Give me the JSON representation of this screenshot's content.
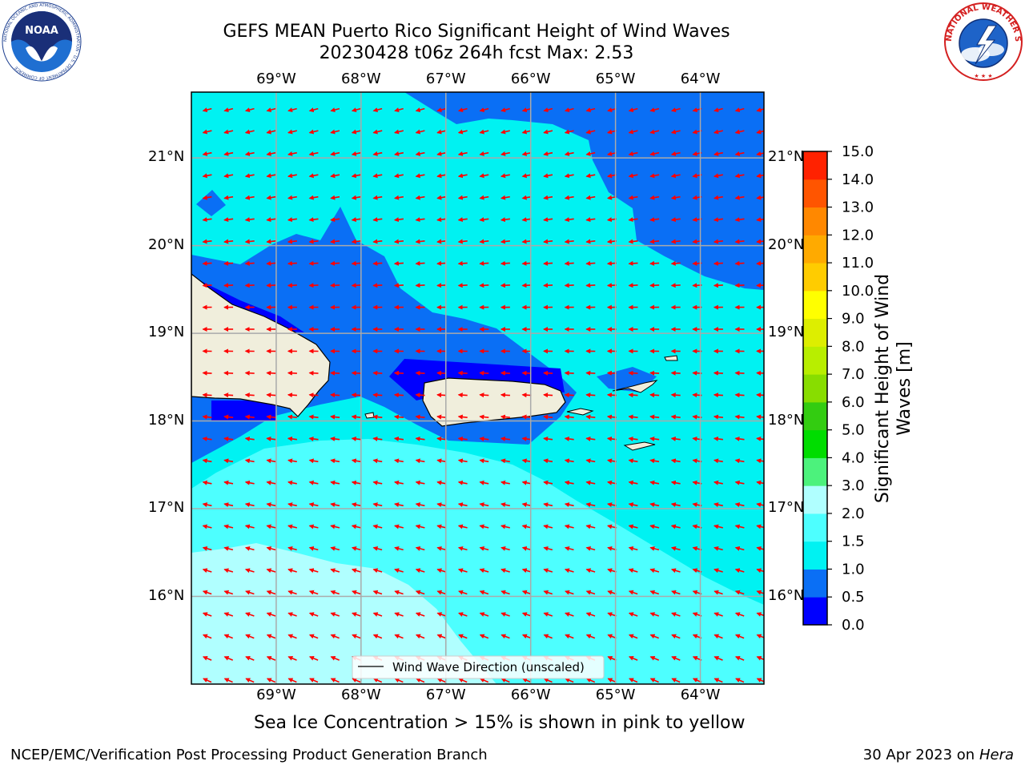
{
  "title_line1": "GEFS MEAN Puerto Rico Significant Height of Wind Waves",
  "title_line2": "20230428 t06z 264h fcst   Max: 2.53",
  "lon_labels": [
    "69°W",
    "68°W",
    "67°W",
    "66°W",
    "65°W",
    "64°W"
  ],
  "lat_labels": [
    "21°N",
    "20°N",
    "19°N",
    "18°N",
    "17°N",
    "16°N"
  ],
  "legend_label": "Wind Wave Direction (unscaled)",
  "ice_note": "Sea Ice Concentration > 15% is shown in pink to yellow",
  "footer_left": "NCEP/EMC/Verification Post Processing Product Generation Branch",
  "footer_right_date": "30 Apr 2023 on ",
  "footer_right_host": "Hera",
  "colorbar": {
    "title_line1": "Significant Height of Wind",
    "title_line2": "Waves [m]",
    "levels": [
      0.0,
      0.5,
      1.0,
      1.5,
      2.0,
      3.0,
      4.0,
      5.0,
      6.0,
      7.0,
      8.0,
      9.0,
      10.0,
      11.0,
      12.0,
      13.0,
      14.0,
      15.0
    ],
    "tick_labels": [
      "0.0",
      "0.5",
      "1.0",
      "1.5",
      "2.0",
      "3.0",
      "4.0",
      "5.0",
      "6.0",
      "7.0",
      "8.0",
      "9.0",
      "10.0",
      "11.0",
      "12.0",
      "13.0",
      "14.0",
      "15.0"
    ],
    "colors": [
      "#0000ff",
      "#0a6ff5",
      "#00f2f2",
      "#4dffff",
      "#b0ffff",
      "#4cf27c",
      "#00dd00",
      "#33cc11",
      "#88dd00",
      "#b8ee00",
      "#ddee00",
      "#ffff00",
      "#ffcc00",
      "#ffaa00",
      "#ff8800",
      "#ff5500",
      "#ff2200"
    ]
  },
  "map": {
    "lon_range": [
      -70.0,
      -63.25
    ],
    "lat_range": [
      15.0,
      21.75
    ],
    "arrow_color": "#ff0000",
    "land_color": "#f0eedc"
  },
  "logos": {
    "noaa_text": "NOAA",
    "noaa_ring": "NATIONAL OCEANIC AND ATMOSPHERIC ADMINISTRATION · U.S. DEPARTMENT OF COMMERCE",
    "nws_ring": "NATIONAL WEATHER SERVICE"
  }
}
